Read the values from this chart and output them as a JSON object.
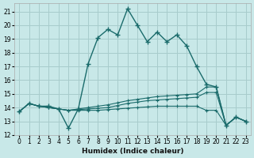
{
  "xlabel": "Humidex (Indice chaleur)",
  "xlim": [
    -0.5,
    23.5
  ],
  "ylim": [
    12,
    21.6
  ],
  "yticks": [
    12,
    13,
    14,
    15,
    16,
    17,
    18,
    19,
    20,
    21
  ],
  "xticks": [
    0,
    1,
    2,
    3,
    4,
    5,
    6,
    7,
    8,
    9,
    10,
    11,
    12,
    13,
    14,
    15,
    16,
    17,
    18,
    19,
    20,
    21,
    22,
    23
  ],
  "bg_color": "#c8e8e8",
  "grid_color": "#a8cccc",
  "line_color": "#1a6b6b",
  "main_line": [
    13.7,
    14.3,
    14.1,
    14.1,
    13.9,
    12.5,
    13.9,
    17.2,
    19.1,
    19.7,
    19.3,
    21.2,
    20.0,
    18.8,
    19.5,
    18.8,
    19.3,
    18.5,
    17.0,
    15.7,
    15.5,
    12.7,
    13.3,
    13.0
  ],
  "trend_lines": [
    [
      13.7,
      14.3,
      14.1,
      14.0,
      13.9,
      13.8,
      13.9,
      14.0,
      14.1,
      14.2,
      14.35,
      14.5,
      14.6,
      14.7,
      14.8,
      14.85,
      14.9,
      14.95,
      15.0,
      15.5,
      15.5,
      12.7,
      13.3,
      13.0
    ],
    [
      13.7,
      14.3,
      14.1,
      14.0,
      13.9,
      13.8,
      13.85,
      13.9,
      13.95,
      14.0,
      14.15,
      14.3,
      14.4,
      14.5,
      14.55,
      14.6,
      14.65,
      14.7,
      14.75,
      15.1,
      15.1,
      12.7,
      13.3,
      13.0
    ],
    [
      13.7,
      14.3,
      14.1,
      14.0,
      13.9,
      13.8,
      13.8,
      13.8,
      13.8,
      13.85,
      13.9,
      13.95,
      14.0,
      14.05,
      14.1,
      14.1,
      14.1,
      14.1,
      14.1,
      13.8,
      13.8,
      12.7,
      13.3,
      13.0
    ]
  ]
}
